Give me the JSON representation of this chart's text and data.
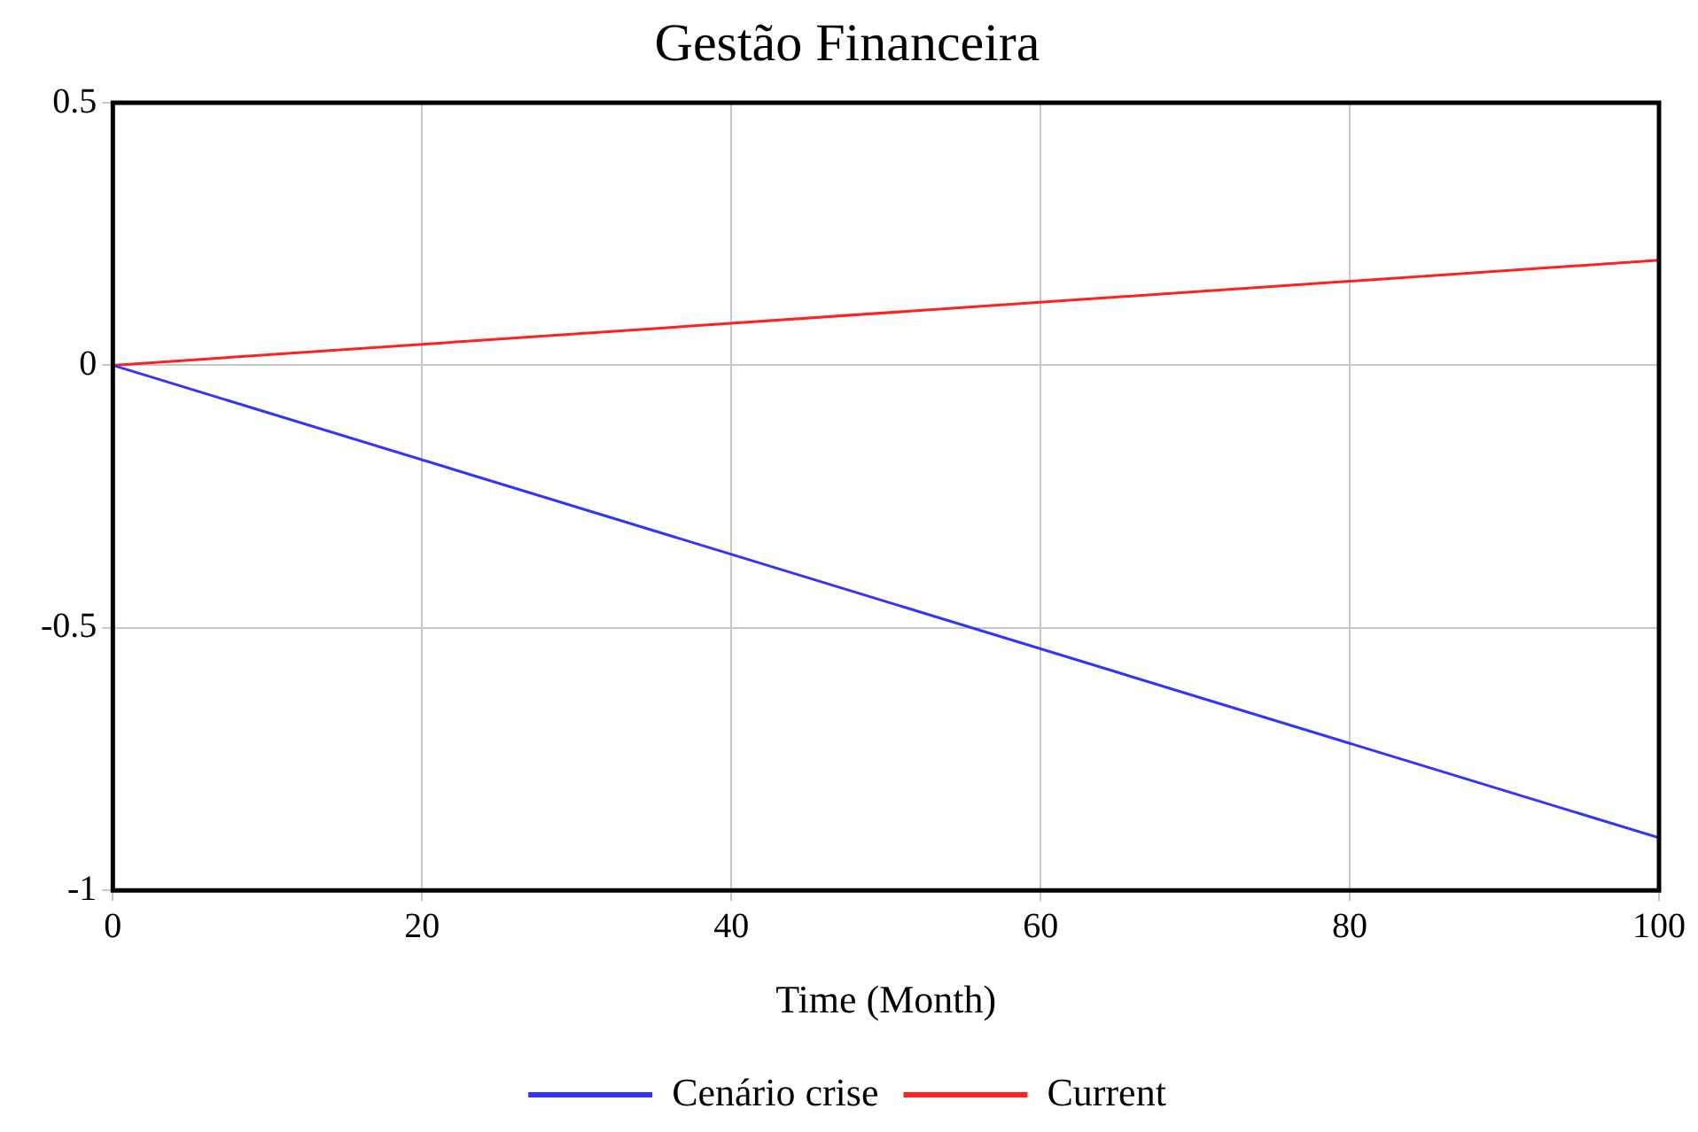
{
  "chart_data": {
    "type": "line",
    "title": "Gestão Financeira",
    "xlabel": "Time (Month)",
    "x": [
      0,
      100
    ],
    "series": [
      {
        "name": "Cenário crise",
        "color": "#3333ff",
        "values": [
          0,
          -0.9
        ]
      },
      {
        "name": "Current",
        "color": "#ff2020",
        "values": [
          0,
          0.2
        ]
      }
    ],
    "xlim": [
      0,
      100
    ],
    "xticks": [
      0,
      20,
      40,
      60,
      80,
      100
    ],
    "ylim": [
      -1,
      0.5
    ],
    "yticks": [
      -1,
      -0.5,
      0,
      0.5
    ],
    "grid": true,
    "legend": "bottom",
    "marker": "none",
    "line_style": "solid"
  }
}
